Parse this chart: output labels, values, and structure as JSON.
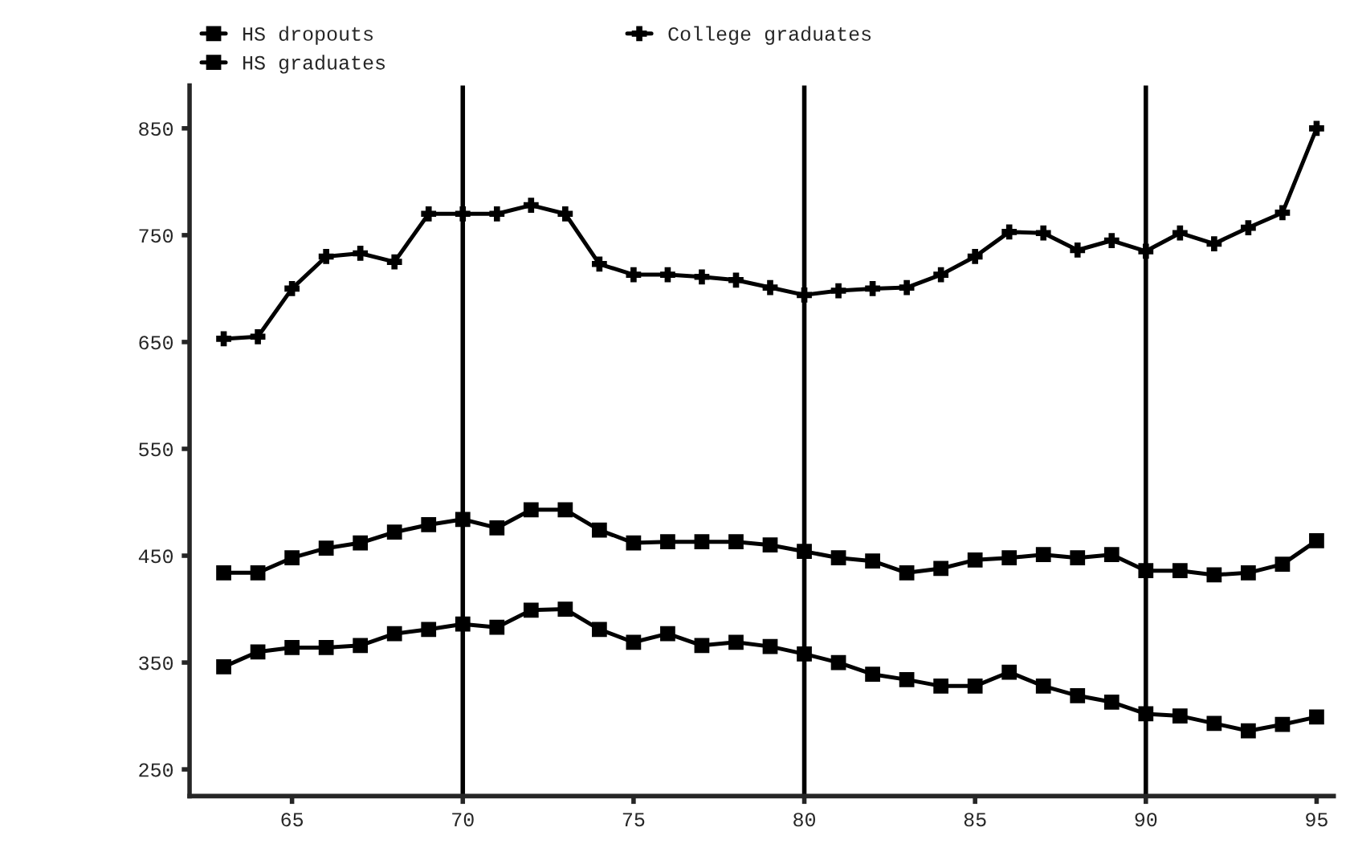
{
  "chart_data": {
    "type": "line",
    "x": [
      63,
      64,
      65,
      66,
      67,
      68,
      69,
      70,
      71,
      72,
      73,
      74,
      75,
      76,
      77,
      78,
      79,
      80,
      81,
      82,
      83,
      84,
      85,
      86,
      87,
      88,
      89,
      90,
      91,
      92,
      93,
      94,
      95
    ],
    "series": [
      {
        "name": "HS dropouts",
        "color": "#000000",
        "marker": "square",
        "values": [
          346,
          360,
          364,
          364,
          366,
          377,
          381,
          386,
          383,
          399,
          400,
          381,
          369,
          377,
          366,
          369,
          365,
          358,
          350,
          339,
          334,
          328,
          328,
          341,
          328,
          319,
          313,
          302,
          300,
          293,
          286,
          292,
          299
        ]
      },
      {
        "name": "HS graduates",
        "color": "#000000",
        "marker": "square",
        "values": [
          434,
          434,
          448,
          457,
          462,
          472,
          479,
          484,
          476,
          493,
          493,
          474,
          462,
          463,
          463,
          463,
          460,
          454,
          448,
          445,
          434,
          438,
          446,
          448,
          451,
          448,
          451,
          436,
          436,
          432,
          434,
          442,
          464
        ]
      },
      {
        "name": "College graduates",
        "color": "#000000",
        "marker": "cross",
        "values": [
          653,
          655,
          700,
          730,
          733,
          725,
          770,
          770,
          770,
          778,
          770,
          723,
          713,
          713,
          711,
          708,
          701,
          694,
          698,
          700,
          701,
          713,
          730,
          753,
          752,
          736,
          745,
          735,
          752,
          742,
          757,
          771,
          850
        ]
      }
    ],
    "xlim": [
      62,
      95.5
    ],
    "xticks": [
      65,
      70,
      75,
      80,
      85,
      90,
      95
    ],
    "ylim": [
      225,
      890
    ],
    "yticks": [
      250,
      350,
      450,
      550,
      650,
      750,
      850
    ],
    "ref_lines": [
      {
        "axis": "x",
        "value": 70,
        "color": "#000000"
      },
      {
        "axis": "x",
        "value": 80,
        "color": "#000000"
      },
      {
        "axis": "x",
        "value": 90,
        "color": "#000000"
      }
    ],
    "legend": "top",
    "grid": false,
    "line_style": "solid"
  }
}
